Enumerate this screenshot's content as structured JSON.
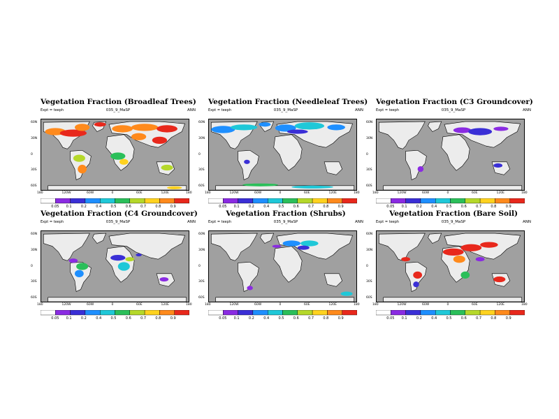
{
  "experiment_label": "Expt = teeph",
  "case_label": "035_9_MaSP",
  "season_label": "ANN",
  "lat_labels": [
    "60N",
    "30N",
    "0",
    "30S",
    "60S"
  ],
  "lon_labels": [
    "180",
    "120W",
    "60W",
    "0",
    "60E",
    "120E",
    "180"
  ],
  "colorbar": {
    "levels": [
      "0.05",
      "0.1",
      "0.2",
      "0.4",
      "0.5",
      "0.6",
      "0.7",
      "0.8",
      "0.9"
    ],
    "colors": [
      "#ffffff",
      "#8a2be2",
      "#3a2fd6",
      "#1e8fff",
      "#1fc8d8",
      "#2bbf5a",
      "#b5d82a",
      "#ffd21f",
      "#ff8a1c",
      "#e8281c"
    ]
  },
  "panels": [
    {
      "title": "Vegetation Fraction (Broadleaf Trees)"
    },
    {
      "title": "Vegetation Fraction (Needleleaf Trees)"
    },
    {
      "title": "Vegetation Fraction (C3 Groundcover)"
    },
    {
      "title": "Vegetation Fraction (C4 Groundcover)"
    },
    {
      "title": "Vegetation Fraction (Shrubs)"
    },
    {
      "title": "Vegetation Fraction (Bare Soil)"
    }
  ]
}
